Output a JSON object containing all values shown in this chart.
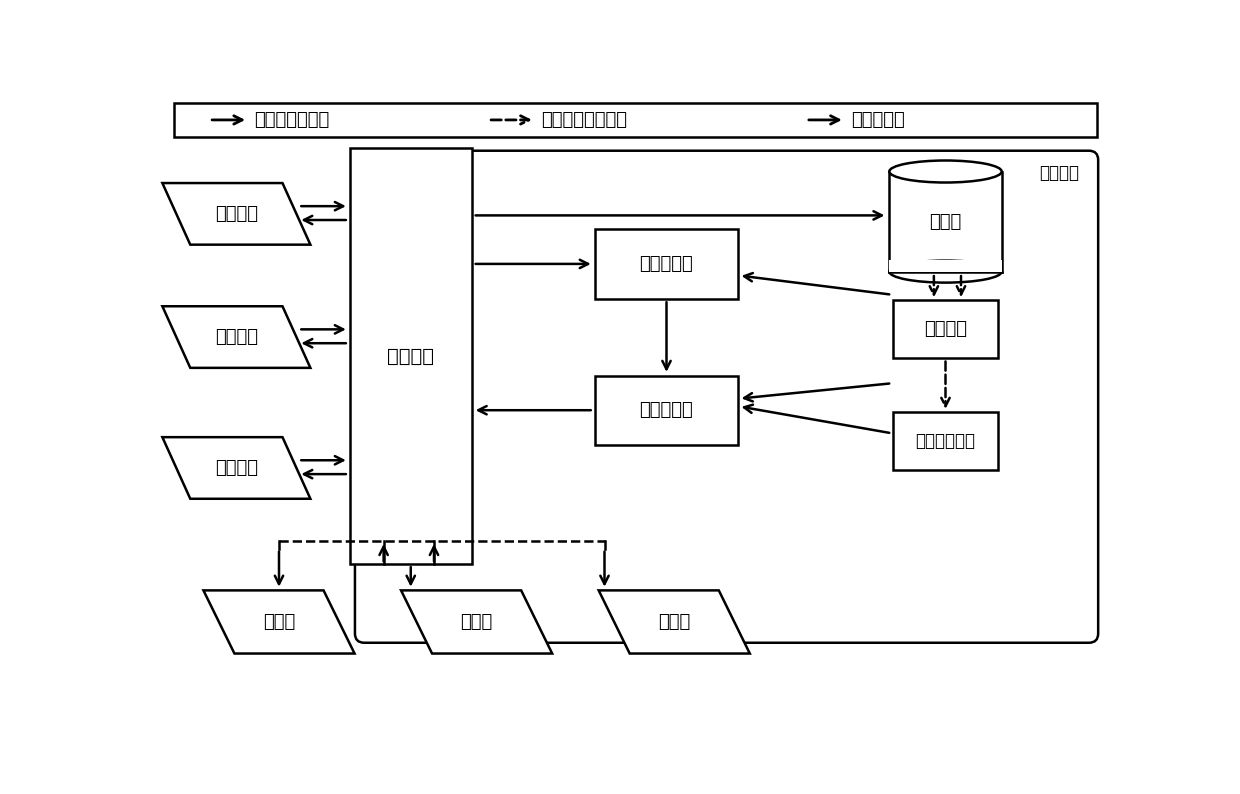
{
  "background_color": "#ffffff",
  "legend_label_1": "提供服务数据流",
  "legend_label_2": "出租车状态更新流",
  "legend_label_3": "离线操作流",
  "label_taxi_req": "打车请求",
  "label_interface": "交互接口",
  "label_database": "数据库",
  "label_search": "搜索候选集",
  "label_schedule": "调度出租车",
  "label_map": "地图信息",
  "label_hotspot": "打车热点信息",
  "label_taxi": "出租车",
  "label_dispatch_center": "调度中心"
}
